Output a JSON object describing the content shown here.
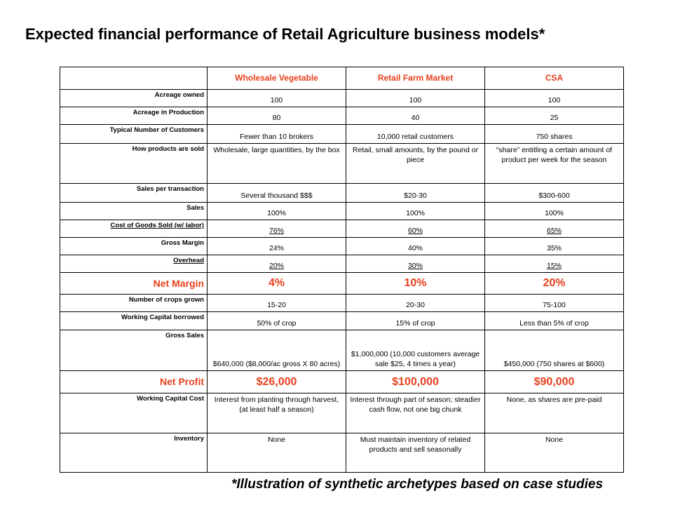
{
  "title": "Expected financial performance of Retail Agriculture business models*",
  "footnote": "*Illustration of synthetic archetypes based on case studies",
  "columns": [
    "",
    "Wholesale Vegetable",
    "Retail Farm Market",
    "CSA"
  ],
  "rows": [
    {
      "label": "Acreage owned",
      "values": [
        "100",
        "100",
        "100"
      ]
    },
    {
      "label": "Acreage in Production",
      "values": [
        "80",
        "40",
        "25"
      ]
    },
    {
      "label": "Typical Number of Customers",
      "values": [
        "Fewer than 10 brokers",
        "10,000 retail customers",
        "750 shares"
      ]
    },
    {
      "label": "How products are sold",
      "values": [
        "Wholesale, large quantities, by the box",
        "Retail, small amounts, by the pound or piece",
        "“share” entitling a certain amount of product per week for the season"
      ]
    },
    {
      "label": "Sales per transaction",
      "values": [
        "Several thousand $$$",
        "$20-30",
        "$300-600"
      ]
    },
    {
      "label": "Sales",
      "values": [
        "100%",
        "100%",
        "100%"
      ]
    },
    {
      "label": "Cost of Goods Sold (w/ labor)",
      "values": [
        "76%",
        "60%",
        "65%"
      ]
    },
    {
      "label": "Gross Margin",
      "values": [
        "24%",
        "40%",
        "35%"
      ]
    },
    {
      "label": "Overhead",
      "values": [
        "20%",
        "30%",
        "15%"
      ]
    },
    {
      "label": "Net Margin",
      "values": [
        "4%",
        "10%",
        "20%"
      ]
    },
    {
      "label": "Number of crops grown",
      "values": [
        "15-20",
        "20-30",
        "75-100"
      ]
    },
    {
      "label": "Working Capital borrowed",
      "values": [
        "50% of crop",
        "15% of crop",
        "Less than 5% of crop"
      ]
    },
    {
      "label": "Gross Sales",
      "values": [
        "$640,000 ($8,000/ac gross X 80 acres)",
        "$1,000,000 (10,000 customers average sale $25, 4 times a year)",
        "$450,000 (750 shares at $600)"
      ]
    },
    {
      "label": "Net Profit",
      "values": [
        "$26,000",
        "$100,000",
        "$90,000"
      ]
    },
    {
      "label": "Working Capital Cost",
      "values": [
        "Interest from planting through harvest, (at least half a season)",
        "Interest through part of season; steadier cash flow, not one big chunk",
        "None, as shares are pre-paid"
      ]
    },
    {
      "label": "Inventory",
      "values": [
        "None",
        "Must maintain inventory of related products and sell seasonally",
        "None"
      ]
    }
  ],
  "colors": {
    "accent": "#e8401c",
    "text": "#000000",
    "border": "#000000"
  }
}
